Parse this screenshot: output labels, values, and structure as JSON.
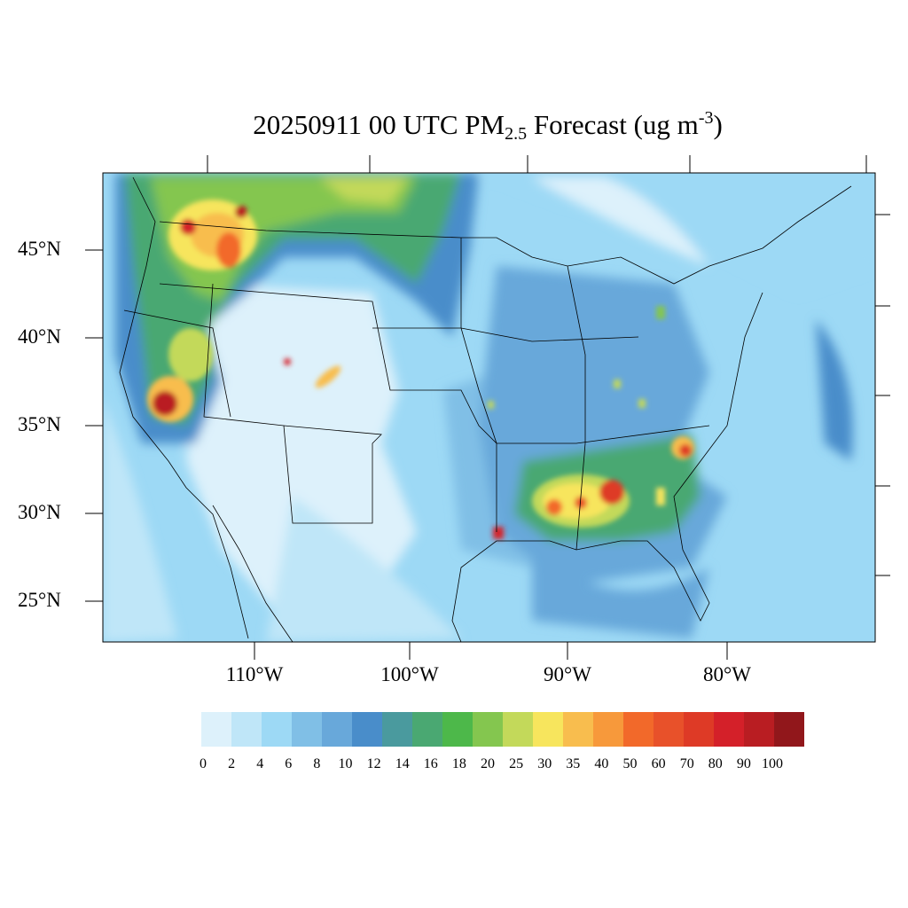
{
  "title": {
    "main": "20250911 00 UTC PM",
    "sub": "2.5",
    "after": " Forecast (ug m",
    "sup": "-3",
    "close": ")"
  },
  "lat_labels": [
    "45°N",
    "40°N",
    "35°N",
    "30°N",
    "25°N"
  ],
  "lon_labels": [
    "110°W",
    "100°W",
    "90°W",
    "80°W"
  ],
  "colorbar": {
    "labels": [
      "0",
      "2",
      "4",
      "6",
      "8",
      "10",
      "12",
      "14",
      "16",
      "18",
      "20",
      "25",
      "30",
      "35",
      "40",
      "50",
      "60",
      "70",
      "80",
      "90",
      "100"
    ],
    "colors": [
      "#ddf1fb",
      "#bfe6f8",
      "#9dd9f5",
      "#80bfe6",
      "#68a8da",
      "#498dca",
      "#4a9a9e",
      "#4aa872",
      "#4db84a",
      "#84c64f",
      "#c3d95a",
      "#f7e55d",
      "#f8bd4e",
      "#f7993b",
      "#f2692a",
      "#e8512a",
      "#de3a26",
      "#d42029",
      "#b91d22",
      "#91171b"
    ]
  }
}
